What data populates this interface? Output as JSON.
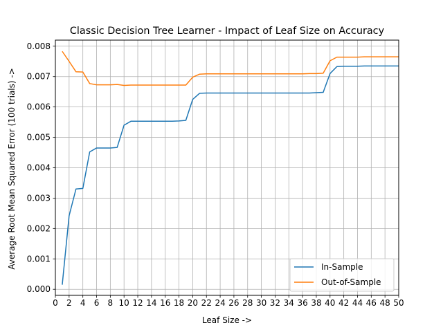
{
  "chart_data": {
    "type": "line",
    "title": "Classic Decision Tree Learner - Impact of Leaf Size on Accuracy",
    "xlabel": "Leaf Size ->",
    "ylabel": "Average Root Mean Squared Error (100 trials) ->",
    "xlim": [
      1,
      50
    ],
    "ylim": [
      -0.0002,
      0.0082
    ],
    "x_ticks": [
      0,
      2,
      4,
      6,
      8,
      10,
      12,
      14,
      16,
      18,
      20,
      22,
      24,
      26,
      28,
      30,
      32,
      34,
      36,
      38,
      40,
      42,
      44,
      46,
      48,
      50
    ],
    "x_tick_labels": [
      "0",
      "2",
      "4",
      "6",
      "8",
      "10",
      "12",
      "14",
      "16",
      "18",
      "20",
      "22",
      "24",
      "26",
      "28",
      "30",
      "32",
      "34",
      "36",
      "38",
      "40",
      "42",
      "44",
      "46",
      "48",
      "50"
    ],
    "y_ticks": [
      0,
      0.001,
      0.002,
      0.003,
      0.004,
      0.005,
      0.006,
      0.007,
      0.008
    ],
    "y_tick_labels": [
      "0.000",
      "0.001",
      "0.002",
      "0.003",
      "0.004",
      "0.005",
      "0.006",
      "0.007",
      "0.008"
    ],
    "grid": true,
    "legend_position": "lower-right",
    "x": [
      1,
      2,
      3,
      4,
      5,
      6,
      7,
      8,
      9,
      10,
      11,
      12,
      13,
      14,
      15,
      16,
      17,
      18,
      19,
      20,
      21,
      22,
      23,
      24,
      25,
      26,
      27,
      28,
      29,
      30,
      31,
      32,
      33,
      34,
      35,
      36,
      37,
      38,
      39,
      40,
      41,
      42,
      43,
      44,
      45,
      46,
      47,
      48,
      49,
      50
    ],
    "series": [
      {
        "name": "In-Sample",
        "color": "#1f77b4",
        "values": [
          0.00015,
          0.00242,
          0.0033,
          0.00332,
          0.00452,
          0.00465,
          0.00465,
          0.00465,
          0.00467,
          0.0054,
          0.00553,
          0.00553,
          0.00553,
          0.00553,
          0.00553,
          0.00553,
          0.00553,
          0.00554,
          0.00556,
          0.00625,
          0.00645,
          0.00646,
          0.00646,
          0.00646,
          0.00646,
          0.00646,
          0.00646,
          0.00646,
          0.00646,
          0.00646,
          0.00646,
          0.00646,
          0.00646,
          0.00646,
          0.00646,
          0.00646,
          0.00646,
          0.00647,
          0.00648,
          0.0071,
          0.00733,
          0.00734,
          0.00734,
          0.00734,
          0.00735,
          0.00735,
          0.00735,
          0.00735,
          0.00735,
          0.00735
        ]
      },
      {
        "name": "Out-of-Sample",
        "color": "#ff7f0e",
        "values": [
          0.00783,
          0.0075,
          0.00716,
          0.00715,
          0.00677,
          0.00673,
          0.00673,
          0.00673,
          0.00674,
          0.00671,
          0.00672,
          0.00672,
          0.00672,
          0.00672,
          0.00672,
          0.00672,
          0.00672,
          0.00672,
          0.00672,
          0.00698,
          0.00708,
          0.00709,
          0.00709,
          0.00709,
          0.00709,
          0.00709,
          0.00709,
          0.00709,
          0.00709,
          0.00709,
          0.00709,
          0.00709,
          0.00709,
          0.00709,
          0.00709,
          0.00709,
          0.0071,
          0.0071,
          0.00711,
          0.00752,
          0.00764,
          0.00764,
          0.00764,
          0.00764,
          0.00765,
          0.00765,
          0.00765,
          0.00765,
          0.00765,
          0.00765
        ]
      }
    ]
  }
}
